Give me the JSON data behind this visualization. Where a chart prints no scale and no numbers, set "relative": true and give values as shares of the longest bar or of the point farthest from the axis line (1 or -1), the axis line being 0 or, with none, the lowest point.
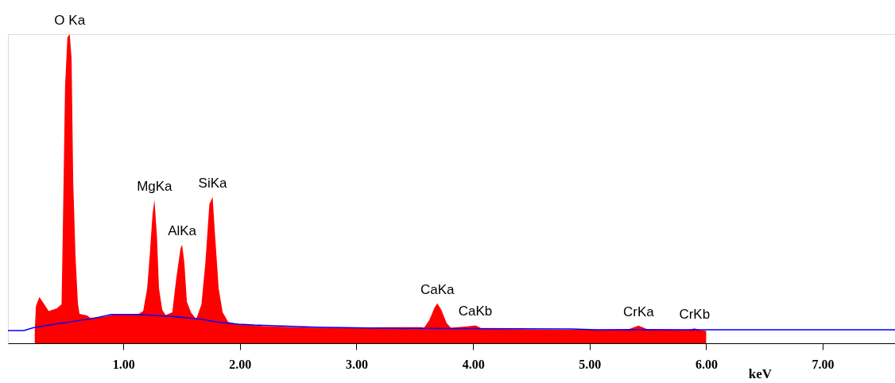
{
  "chart_data": {
    "type": "area",
    "relative": true,
    "xlabel": "keV",
    "xlim": [
      0.01,
      7.62
    ],
    "xticks": [
      {
        "value": 1,
        "label": "1.00"
      },
      {
        "value": 2,
        "label": "2.00"
      },
      {
        "value": 3,
        "label": "3.00"
      },
      {
        "value": 4,
        "label": "4.00"
      },
      {
        "value": 5,
        "label": "5.00"
      },
      {
        "value": 6,
        "label": "6.00"
      },
      {
        "value": 7,
        "label": "7.00"
      }
    ],
    "series": [
      {
        "color": "#ff0000",
        "x": [
          0.24,
          0.25,
          0.28,
          0.36,
          0.43,
          0.47,
          0.48,
          0.5,
          0.52,
          0.54,
          0.556,
          0.57,
          0.59,
          0.61,
          0.624,
          0.69,
          0.715,
          0.85,
          0.92,
          1.124,
          1.17,
          1.204,
          1.227,
          1.25,
          1.267,
          1.288,
          1.306,
          1.334,
          1.363,
          1.42,
          1.454,
          1.49,
          1.504,
          1.523,
          1.545,
          1.58,
          1.625,
          1.67,
          1.704,
          1.738,
          1.766,
          1.784,
          1.818,
          1.852,
          1.9,
          1.989,
          2.21,
          2.65,
          3.32,
          3.56,
          3.58,
          3.625,
          3.67,
          3.694,
          3.728,
          3.774,
          3.81,
          3.97,
          4.02,
          4.08,
          4.77,
          5.06,
          5.34,
          5.42,
          5.49,
          5.85,
          5.9,
          5.94,
          6.0
        ],
        "values": [
          0.04,
          0.12,
          0.15,
          0.104,
          0.113,
          0.126,
          0.347,
          0.83,
          0.99,
          1.0,
          0.92,
          0.52,
          0.28,
          0.13,
          0.095,
          0.09,
          0.082,
          0.087,
          0.093,
          0.093,
          0.104,
          0.177,
          0.288,
          0.416,
          0.464,
          0.348,
          0.177,
          0.108,
          0.091,
          0.1,
          0.21,
          0.306,
          0.319,
          0.262,
          0.134,
          0.1,
          0.078,
          0.126,
          0.262,
          0.45,
          0.473,
          0.365,
          0.177,
          0.1,
          0.069,
          0.062,
          0.055,
          0.05,
          0.052,
          0.052,
          0.05,
          0.075,
          0.116,
          0.129,
          0.108,
          0.065,
          0.05,
          0.055,
          0.058,
          0.047,
          0.044,
          0.044,
          0.046,
          0.057,
          0.046,
          0.044,
          0.048,
          0.044,
          0.04
        ]
      },
      {
        "type": "line",
        "color": "#0000ff",
        "x": [
          0.01,
          0.147,
          0.226,
          0.397,
          0.578,
          0.738,
          0.897,
          1.124,
          1.42,
          1.625,
          1.806,
          1.989,
          2.125,
          2.21,
          2.65,
          3.32,
          4.85,
          5.06,
          7.62
        ],
        "values": [
          0.041,
          0.041,
          0.05,
          0.061,
          0.071,
          0.08,
          0.093,
          0.093,
          0.087,
          0.08,
          0.069,
          0.062,
          0.059,
          0.058,
          0.052,
          0.048,
          0.046,
          0.044,
          0.044
        ]
      }
    ],
    "annotations": [
      {
        "text": "O Ka",
        "x": 0.54,
        "y": 1.0
      },
      {
        "text": "MgKa",
        "x": 1.267,
        "y": 0.464
      },
      {
        "text": "SiKa",
        "x": 1.766,
        "y": 0.473
      },
      {
        "text": "AlKa",
        "x": 1.504,
        "y": 0.319
      },
      {
        "text": "CaKa",
        "x": 3.694,
        "y": 0.129
      },
      {
        "text": "CaKb",
        "x": 4.02,
        "y": 0.058
      },
      {
        "text": "CrKa",
        "x": 5.42,
        "y": 0.057
      },
      {
        "text": "CrKb",
        "x": 5.9,
        "y": 0.048
      }
    ]
  }
}
